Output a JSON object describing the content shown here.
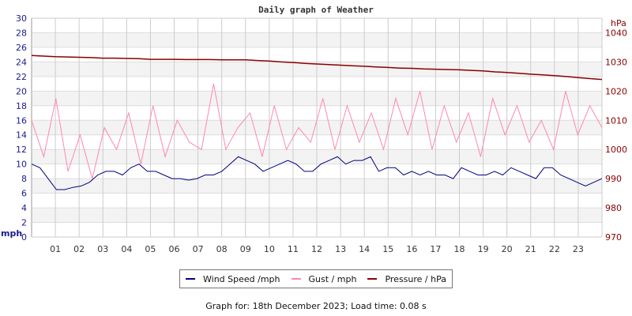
{
  "chart_data": {
    "type": "line",
    "title": "Daily graph of Weather",
    "ylabel_left": "mph",
    "ylabel_right": "hPa",
    "ylim_left": [
      0,
      30
    ],
    "ylim_right": [
      970,
      1045
    ],
    "yticks_left": [
      "0",
      "2",
      "4",
      "6",
      "8",
      "10",
      "12",
      "14",
      "16",
      "18",
      "20",
      "22",
      "24",
      "26",
      "28",
      "30"
    ],
    "yticks_right": [
      "970",
      "980",
      "990",
      "1000",
      "1010",
      "1020",
      "1030",
      "1040"
    ],
    "xticks": [
      "01",
      "02",
      "03",
      "04",
      "05",
      "06",
      "07",
      "08",
      "09",
      "10",
      "11",
      "12",
      "13",
      "14",
      "15",
      "16",
      "17",
      "18",
      "19",
      "20",
      "21",
      "22",
      "23"
    ],
    "xlim_hours": [
      0,
      24
    ],
    "grid": true,
    "legend_position": "bottom",
    "x_hours_step": 0.5,
    "series": [
      {
        "name": "Wind Speed /mph",
        "color": "#000080",
        "axis": "left",
        "values": [
          10,
          9.5,
          8,
          6.5,
          6.5,
          6.8,
          7,
          7.5,
          8.5,
          9,
          9,
          8.5,
          9.5,
          10,
          9,
          9,
          8.5,
          8,
          8,
          7.8,
          8,
          8.5,
          8.5,
          9,
          10,
          11,
          10.5,
          10,
          9,
          9.5,
          10,
          10.5,
          10,
          9,
          9,
          10,
          10.5,
          11,
          10,
          10.5,
          10.5,
          11,
          9,
          9.5,
          9.5,
          8.5,
          9,
          8.5,
          9,
          8.5,
          8.5,
          8,
          9.5,
          9,
          8.5,
          8.5,
          9,
          8.5,
          9.5,
          9,
          8.5,
          8,
          9.5,
          9.5,
          8.5,
          8,
          7.5,
          7,
          7.5,
          8
        ]
      },
      {
        "name": "Gust / mph",
        "color": "#ff88aa",
        "axis": "left",
        "values": [
          16,
          11,
          19,
          9,
          14,
          8,
          15,
          12,
          17,
          10,
          18,
          11,
          16,
          13,
          12,
          21,
          12,
          15,
          17,
          11,
          18,
          12,
          15,
          13,
          19,
          12,
          18,
          13,
          17,
          12,
          19,
          14,
          20,
          12,
          18,
          13,
          17,
          11,
          19,
          14,
          18,
          13,
          16,
          12,
          20,
          14,
          18,
          15
        ]
      },
      {
        "name": "Pressure / hPa",
        "color": "#8b0000",
        "axis": "right",
        "values": [
          1032.2,
          1032.0,
          1031.8,
          1031.7,
          1031.6,
          1031.5,
          1031.3,
          1031.3,
          1031.2,
          1031.1,
          1030.9,
          1030.9,
          1030.9,
          1030.8,
          1030.8,
          1030.8,
          1030.7,
          1030.7,
          1030.7,
          1030.5,
          1030.3,
          1030.0,
          1029.8,
          1029.5,
          1029.3,
          1029.1,
          1028.9,
          1028.7,
          1028.5,
          1028.3,
          1028.1,
          1027.9,
          1027.8,
          1027.6,
          1027.5,
          1027.4,
          1027.3,
          1027.1,
          1026.9,
          1026.6,
          1026.4,
          1026.1,
          1025.8,
          1025.6,
          1025.3,
          1025.0,
          1024.6,
          1024.3,
          1024.0
        ]
      }
    ]
  },
  "legend": [
    {
      "label": "Wind Speed /mph",
      "color": "#000080"
    },
    {
      "label": "Gust / mph",
      "color": "#ff88aa"
    },
    {
      "label": "Pressure / hPa",
      "color": "#8b0000"
    }
  ],
  "footer": "Graph for: 18th December 2023; Load time: 0.08 s"
}
